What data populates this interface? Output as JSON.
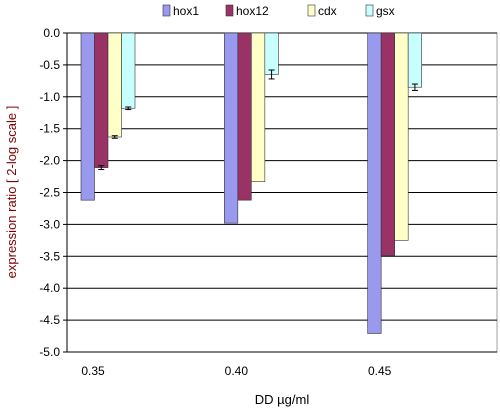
{
  "chart_data": {
    "type": "bar",
    "xlabel": "DD µg/ml",
    "ylabel": "expression ratio [ 2-log scale ]",
    "categories": [
      "0.35",
      "0.40",
      "0.45"
    ],
    "ylim": [
      -5.0,
      0.0
    ],
    "yticks": [
      "0.0",
      "-0.5",
      "-1.0",
      "-1.5",
      "-2.0",
      "-2.5",
      "-3.0",
      "-3.5",
      "-4.0",
      "-4.5",
      "-5.0"
    ],
    "grid": true,
    "legend_position": "top",
    "series": [
      {
        "name": "hox1",
        "color": "#9999ee",
        "values": [
          -2.62,
          -2.98,
          -4.71
        ],
        "errors": [
          0,
          0,
          0
        ]
      },
      {
        "name": "hox12",
        "color": "#993366",
        "values": [
          -2.11,
          -2.62,
          -3.49
        ],
        "errors": [
          0.03,
          0,
          0
        ]
      },
      {
        "name": "cdx",
        "color": "#ffffc8",
        "values": [
          -1.63,
          -2.33,
          -3.25
        ],
        "errors": [
          0.02,
          0,
          0
        ]
      },
      {
        "name": "gsx",
        "color": "#c8ffff",
        "values": [
          -1.18,
          -0.65,
          -0.85
        ],
        "errors": [
          0.02,
          0.07,
          0.05
        ]
      }
    ]
  }
}
